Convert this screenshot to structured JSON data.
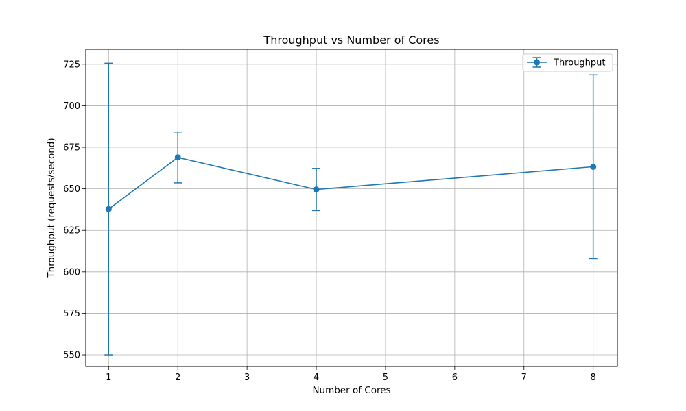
{
  "chart_data": {
    "type": "line",
    "title": "Throughput vs Number of Cores",
    "xlabel": "Number of Cores",
    "ylabel": "Throughput (requests/second)",
    "xlim": [
      0.67,
      8.35
    ],
    "ylim": [
      543,
      734
    ],
    "x_ticks": [
      1,
      2,
      3,
      4,
      5,
      6,
      7,
      8
    ],
    "y_ticks": [
      550,
      575,
      600,
      625,
      650,
      675,
      700,
      725
    ],
    "grid": true,
    "legend": {
      "placement": "top-right",
      "entries": [
        "Throughput"
      ]
    },
    "series": [
      {
        "name": "Throughput",
        "color": "#1f77b4",
        "x": [
          1,
          2,
          4,
          8
        ],
        "y": [
          637.8,
          668.9,
          649.6,
          663.3
        ],
        "yerr": [
          87.8,
          15.3,
          12.7,
          55.3
        ]
      }
    ]
  }
}
